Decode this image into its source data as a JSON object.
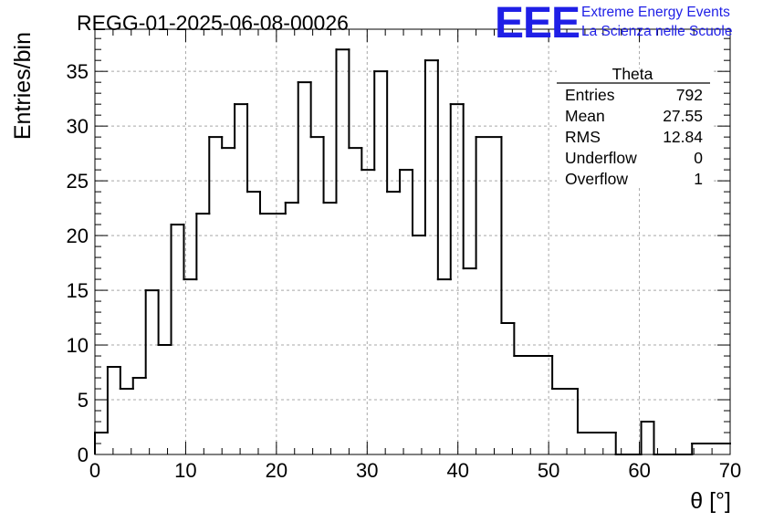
{
  "title": "REGG-01-2025-06-08-00026",
  "logo": {
    "letters": "EEE",
    "line1": "Extreme Energy Events",
    "line2": "La Scienza nelle Scuole",
    "color": "#1f1fe6"
  },
  "stats": {
    "name": "Theta",
    "rows": [
      {
        "label": "Entries",
        "value": "792"
      },
      {
        "label": "Mean",
        "value": "27.55"
      },
      {
        "label": "RMS",
        "value": "12.84"
      },
      {
        "label": "Underflow",
        "value": "0"
      },
      {
        "label": "Overflow",
        "value": "1"
      }
    ]
  },
  "chart_data": {
    "type": "histogram",
    "xlabel": "θ [°]",
    "ylabel": "Entries/bin",
    "xlim": [
      0,
      70
    ],
    "ylim": [
      0,
      38.85
    ],
    "x_ticks": [
      0,
      10,
      20,
      30,
      40,
      50,
      60,
      70
    ],
    "y_ticks": [
      0,
      5,
      10,
      15,
      20,
      25,
      30,
      35
    ],
    "grid": true,
    "bins": [
      {
        "x0": 0.0,
        "x1": 1.4,
        "count": 2
      },
      {
        "x0": 1.4,
        "x1": 2.8,
        "count": 8
      },
      {
        "x0": 2.8,
        "x1": 4.2,
        "count": 6
      },
      {
        "x0": 4.2,
        "x1": 5.6,
        "count": 7
      },
      {
        "x0": 5.6,
        "x1": 7.0,
        "count": 15
      },
      {
        "x0": 7.0,
        "x1": 8.4,
        "count": 10
      },
      {
        "x0": 8.4,
        "x1": 9.8,
        "count": 21
      },
      {
        "x0": 9.8,
        "x1": 11.2,
        "count": 16
      },
      {
        "x0": 11.2,
        "x1": 12.6,
        "count": 22
      },
      {
        "x0": 12.6,
        "x1": 14.0,
        "count": 29
      },
      {
        "x0": 14.0,
        "x1": 15.4,
        "count": 28
      },
      {
        "x0": 15.4,
        "x1": 16.8,
        "count": 32
      },
      {
        "x0": 16.8,
        "x1": 18.2,
        "count": 24
      },
      {
        "x0": 18.2,
        "x1": 21.0,
        "count": 22
      },
      {
        "x0": 21.0,
        "x1": 22.4,
        "count": 23
      },
      {
        "x0": 22.4,
        "x1": 23.8,
        "count": 34
      },
      {
        "x0": 23.8,
        "x1": 25.2,
        "count": 29
      },
      {
        "x0": 25.2,
        "x1": 26.6,
        "count": 23
      },
      {
        "x0": 26.6,
        "x1": 28.0,
        "count": 37
      },
      {
        "x0": 28.0,
        "x1": 29.4,
        "count": 28
      },
      {
        "x0": 29.4,
        "x1": 30.8,
        "count": 26
      },
      {
        "x0": 30.8,
        "x1": 32.2,
        "count": 35
      },
      {
        "x0": 32.2,
        "x1": 33.6,
        "count": 24
      },
      {
        "x0": 33.6,
        "x1": 35.0,
        "count": 26
      },
      {
        "x0": 35.0,
        "x1": 36.4,
        "count": 20
      },
      {
        "x0": 36.4,
        "x1": 37.8,
        "count": 36
      },
      {
        "x0": 37.8,
        "x1": 39.2,
        "count": 16
      },
      {
        "x0": 39.2,
        "x1": 40.6,
        "count": 32
      },
      {
        "x0": 40.6,
        "x1": 42.0,
        "count": 17
      },
      {
        "x0": 42.0,
        "x1": 44.8,
        "count": 29
      },
      {
        "x0": 44.8,
        "x1": 46.2,
        "count": 12
      },
      {
        "x0": 46.2,
        "x1": 50.4,
        "count": 9
      },
      {
        "x0": 50.4,
        "x1": 53.2,
        "count": 6
      },
      {
        "x0": 53.2,
        "x1": 57.4,
        "count": 2
      },
      {
        "x0": 57.4,
        "x1": 60.2,
        "count": 0
      },
      {
        "x0": 60.2,
        "x1": 61.6,
        "count": 3
      },
      {
        "x0": 61.6,
        "x1": 65.8,
        "count": 0
      },
      {
        "x0": 65.8,
        "x1": 70.0,
        "count": 1
      }
    ]
  }
}
